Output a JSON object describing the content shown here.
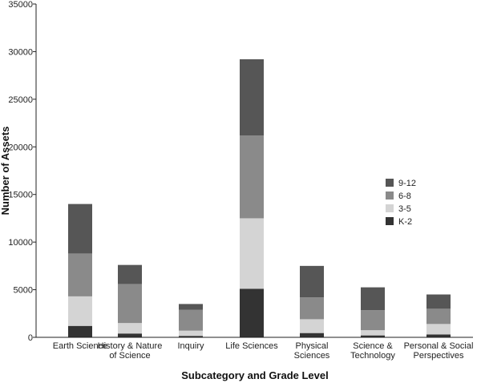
{
  "chart_data": {
    "type": "bar",
    "stacked": true,
    "title": "",
    "xlabel": "Subcategory and Grade Level",
    "ylabel": "Number of Assets",
    "ylim": [
      0,
      35000
    ],
    "yticks": [
      0,
      5000,
      10000,
      15000,
      20000,
      25000,
      30000,
      35000
    ],
    "grid": false,
    "legend_position": "right",
    "categories": [
      [
        "Earth Science"
      ],
      [
        "History & Nature",
        "of Science"
      ],
      [
        "Inquiry"
      ],
      [
        "Life Sciences"
      ],
      [
        "Physical",
        "Sciences"
      ],
      [
        "Science &",
        "Technology"
      ],
      [
        "Personal & Social",
        "Perspectives"
      ]
    ],
    "series": [
      {
        "name": "K-2",
        "color": "#333333",
        "values": [
          1200,
          400,
          150,
          5100,
          450,
          200,
          300
        ]
      },
      {
        "name": "3-5",
        "color": "#d4d4d4",
        "values": [
          3100,
          1100,
          550,
          7400,
          1450,
          550,
          1100
        ]
      },
      {
        "name": "6-8",
        "color": "#8a8a8a",
        "values": [
          4500,
          4100,
          2200,
          8700,
          2300,
          2100,
          1600
        ]
      },
      {
        "name": "9-12",
        "color": "#565656",
        "values": [
          5200,
          2000,
          600,
          8000,
          3300,
          2400,
          1500
        ]
      }
    ],
    "legend_order": [
      "9-12",
      "6-8",
      "3-5",
      "K-2"
    ]
  }
}
